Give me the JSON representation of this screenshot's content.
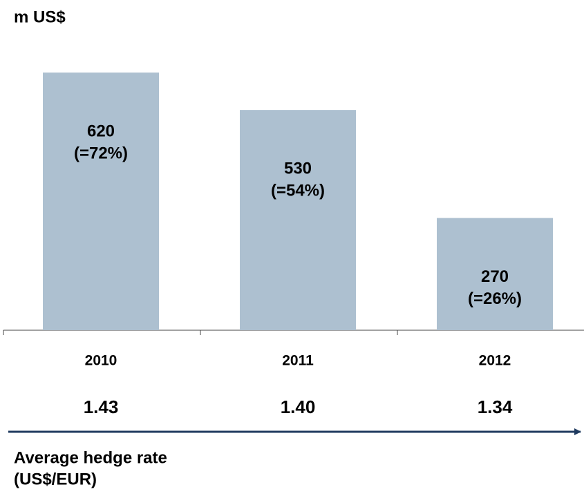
{
  "chart_data": {
    "type": "bar",
    "title": "m US$",
    "categories": [
      "2010",
      "2011",
      "2012"
    ],
    "values": [
      620,
      530,
      270
    ],
    "share_labels": [
      "(=72%)",
      "(=54%)",
      "(=26%)"
    ],
    "color": "#adc0d0",
    "hedge_rate_label": [
      "Average hedge rate",
      "(US$/EUR)"
    ],
    "hedge_rates": [
      "1.43",
      "1.40",
      "1.34"
    ]
  }
}
